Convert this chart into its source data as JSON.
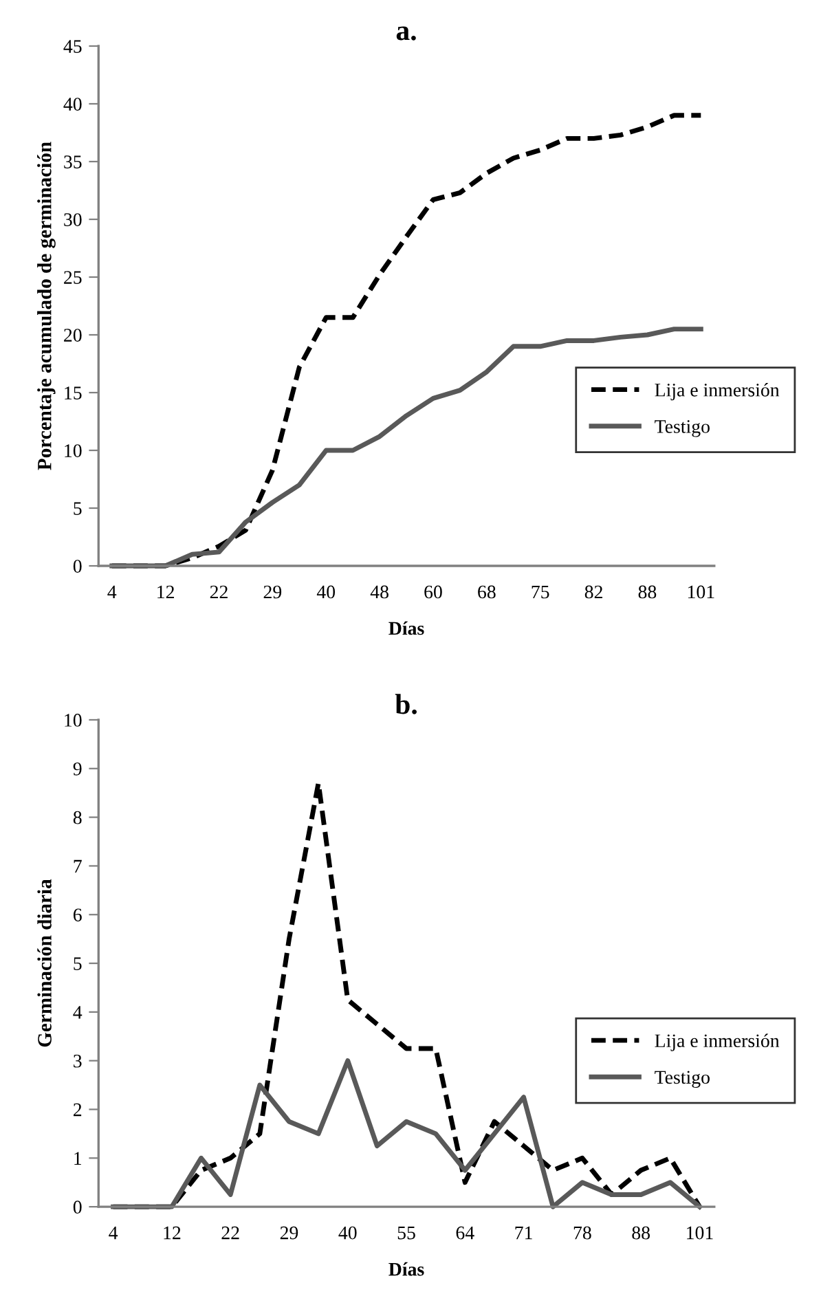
{
  "chart_data": [
    {
      "type": "line",
      "title": "a.",
      "xlabel": "Días",
      "ylabel": "Porcentaje acumulado de germinación",
      "categories": [
        "4",
        null,
        "12",
        null,
        "22",
        null,
        "29",
        null,
        "40",
        null,
        "48",
        null,
        "60",
        null,
        "68",
        null,
        "75",
        null,
        "82",
        null,
        "88",
        null,
        "101"
      ],
      "series": [
        {
          "name": "Lija e inmersión",
          "color": "#000000",
          "line_style": "dashed",
          "values": [
            0,
            0,
            0,
            0.7,
            1.7,
            3.1,
            8.3,
            17.2,
            21.5,
            21.5,
            25.2,
            28.5,
            31.7,
            32.3,
            34,
            35.3,
            36,
            37,
            37,
            37.3,
            38,
            39,
            39
          ]
        },
        {
          "name": "Testigo",
          "color": "#595959",
          "line_style": "solid",
          "values": [
            0,
            0,
            0,
            1,
            1.2,
            3.8,
            5.5,
            7,
            10,
            10,
            11.2,
            13,
            14.5,
            15.2,
            16.8,
            19,
            19,
            19.5,
            19.5,
            19.8,
            20,
            20.5,
            20.5
          ]
        }
      ],
      "ylim": [
        0,
        45
      ],
      "yticks": [
        0,
        5,
        10,
        15,
        20,
        25,
        30,
        35,
        40,
        45
      ],
      "grid": false,
      "legend": "right",
      "marker": "none"
    },
    {
      "type": "line",
      "title": "b.",
      "xlabel": "Días",
      "ylabel": "Germinación diaria",
      "categories": [
        "4",
        null,
        "12",
        null,
        "22",
        null,
        "29",
        null,
        "40",
        null,
        "55",
        null,
        "64",
        null,
        "71",
        null,
        "78",
        null,
        "88",
        null,
        "101"
      ],
      "series": [
        {
          "name": "Lija e inmersión",
          "color": "#000000",
          "line_style": "dashed",
          "values": [
            0,
            0,
            0,
            0.75,
            1,
            1.5,
            5.5,
            8.7,
            4.25,
            3.75,
            3.25,
            3.25,
            0.5,
            1.75,
            1.25,
            0.75,
            1,
            0.25,
            0.75,
            1,
            0
          ]
        },
        {
          "name": "Testigo",
          "color": "#595959",
          "line_style": "solid",
          "values": [
            0,
            0,
            0,
            1,
            0.25,
            2.5,
            1.75,
            1.5,
            3,
            1.25,
            1.75,
            1.5,
            0.75,
            1.5,
            2.25,
            0,
            0.5,
            0.25,
            0.25,
            0.5,
            0
          ]
        }
      ],
      "ylim": [
        0,
        10
      ],
      "yticks": [
        0,
        1,
        2,
        3,
        4,
        5,
        6,
        7,
        8,
        9,
        10
      ],
      "grid": false,
      "legend": "right",
      "marker": "none"
    }
  ]
}
